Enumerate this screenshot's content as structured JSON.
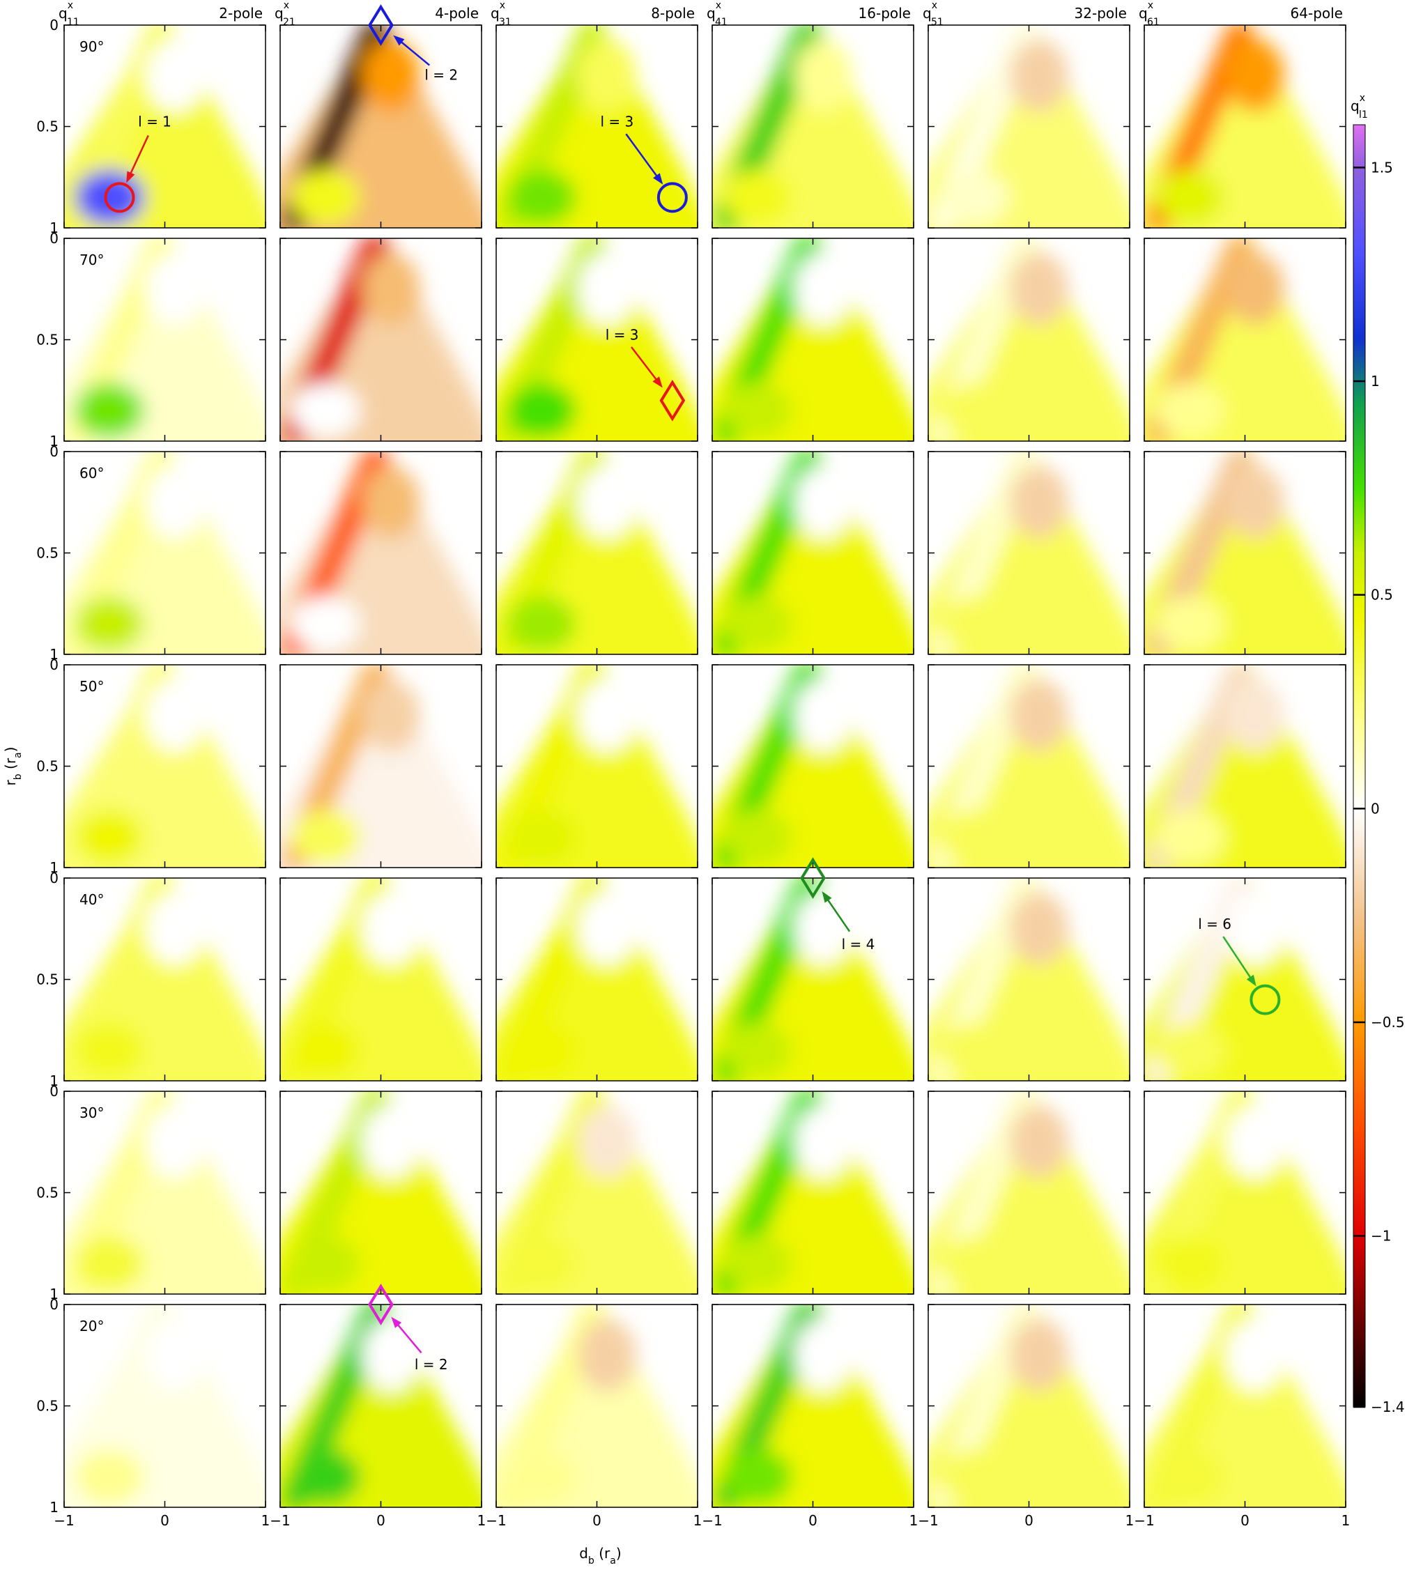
{
  "chart_data": {
    "type": "heatmap",
    "xlim": [
      -1,
      1
    ],
    "ylim": [
      1,
      0
    ],
    "xticks": [
      {
        "value": -1,
        "label": "−1"
      },
      0,
      1
    ],
    "yticks": [
      0,
      0.5,
      1
    ],
    "xlabel": [
      {
        "text": "d"
      },
      {
        "text": "b",
        "sub": true
      },
      {
        "text": " (r"
      },
      {
        "text": "a",
        "sub": true
      },
      {
        "text": ")"
      }
    ],
    "ylabel": [
      {
        "text": "r"
      },
      {
        "text": "b",
        "sub": true
      },
      {
        "text": " (r"
      },
      {
        "text": "a",
        "sub": true
      },
      {
        "text": ")"
      }
    ],
    "columns": [
      {
        "symbol": "q",
        "sup": "x",
        "sub": "11",
        "name": "2-pole"
      },
      {
        "symbol": "q",
        "sup": "x",
        "sub": "21",
        "name": "4-pole"
      },
      {
        "symbol": "q",
        "sup": "x",
        "sub": "31",
        "name": "8-pole"
      },
      {
        "symbol": "q",
        "sup": "x",
        "sub": "41",
        "name": "16-pole"
      },
      {
        "symbol": "q",
        "sup": "x",
        "sub": "51",
        "name": "32-pole"
      },
      {
        "symbol": "q",
        "sup": "x",
        "sub": "61",
        "name": "64-pole"
      }
    ],
    "rows": [
      "90°",
      "70°",
      "60°",
      "50°",
      "40°",
      "30°",
      "20°"
    ],
    "panels": [
      [
        {
          "region": 0.35,
          "edge": 0.3,
          "spot": 0,
          "corner": 1.3,
          "annotation": {
            "text": "l = 1",
            "marker": "circle",
            "color": "#e8161b",
            "x": -0.45,
            "y": 0.85,
            "text_x": -0.1,
            "text_y": 0.5
          }
        },
        {
          "region": -0.3,
          "edge": -1.3,
          "spot": -0.5,
          "corner": 0.4,
          "annotation": {
            "text": "l = 2",
            "marker": "diamond",
            "color": "#1a1adc",
            "x": 0,
            "y": 0,
            "text_x": 0.6,
            "text_y": 0.27
          }
        },
        {
          "region": 0.45,
          "edge": 0.6,
          "spot": 0.3,
          "corner": 0.7,
          "annotation": {
            "text": "l = 3",
            "marker": "circle",
            "color": "#1a1adc",
            "x": 0.75,
            "y": 0.85,
            "text_x": 0.2,
            "text_y": 0.5
          }
        },
        {
          "region": 0.3,
          "edge": 0.8,
          "spot": 0.2,
          "corner": 0.4
        },
        {
          "region": 0.25,
          "edge": 0.05,
          "spot": -0.2,
          "corner": 0.1
        },
        {
          "region": 0.3,
          "edge": -0.6,
          "spot": -0.5,
          "corner": 0.5
        }
      ],
      [
        {
          "region": 0.1,
          "edge": 0.2,
          "spot": 0,
          "corner": 0.7
        },
        {
          "region": -0.2,
          "edge": -1.0,
          "spot": -0.3,
          "corner": 0
        },
        {
          "region": 0.45,
          "edge": 0.6,
          "spot": 0,
          "corner": 0.75,
          "annotation": {
            "text": "l = 3",
            "marker": "diamond",
            "color": "#e8161b",
            "x": 0.75,
            "y": 0.8,
            "text_x": 0.25,
            "text_y": 0.5
          }
        },
        {
          "region": 0.45,
          "edge": 0.75,
          "spot": 0,
          "corner": 0.6
        },
        {
          "region": 0.3,
          "edge": 0.1,
          "spot": -0.2,
          "corner": 0.3
        },
        {
          "region": 0.3,
          "edge": -0.35,
          "spot": -0.3,
          "corner": 0.2
        }
      ],
      [
        {
          "region": 0.15,
          "edge": 0.2,
          "spot": 0,
          "corner": 0.6
        },
        {
          "region": -0.15,
          "edge": -0.7,
          "spot": -0.3,
          "corner": 0
        },
        {
          "region": 0.4,
          "edge": 0.5,
          "spot": 0,
          "corner": 0.65
        },
        {
          "region": 0.45,
          "edge": 0.75,
          "spot": 0,
          "corner": 0.6
        },
        {
          "region": 0.3,
          "edge": 0.1,
          "spot": -0.2,
          "corner": 0.3
        },
        {
          "region": 0.35,
          "edge": -0.25,
          "spot": -0.2,
          "corner": 0.2
        }
      ],
      [
        {
          "region": 0.25,
          "edge": 0.25,
          "spot": 0,
          "corner": 0.45
        },
        {
          "region": -0.05,
          "edge": -0.35,
          "spot": -0.2,
          "corner": 0.3
        },
        {
          "region": 0.4,
          "edge": 0.45,
          "spot": 0,
          "corner": 0.5
        },
        {
          "region": 0.45,
          "edge": 0.75,
          "spot": 0,
          "corner": 0.6
        },
        {
          "region": 0.3,
          "edge": 0.1,
          "spot": -0.2,
          "corner": 0.3
        },
        {
          "region": 0.4,
          "edge": -0.15,
          "spot": -0.1,
          "corner": 0.2
        }
      ],
      [
        {
          "region": 0.3,
          "edge": 0.3,
          "spot": 0,
          "corner": 0.4
        },
        {
          "region": 0.35,
          "edge": 0.4,
          "spot": 0,
          "corner": 0.45
        },
        {
          "region": 0.4,
          "edge": 0.45,
          "spot": 0,
          "corner": 0.45
        },
        {
          "region": 0.45,
          "edge": 0.75,
          "spot": 0,
          "corner": 0.6,
          "annotation": {
            "text": "l = 4",
            "marker": "diamond",
            "color": "#1e8c1e",
            "x": 0,
            "y": 0,
            "text_x": 0.45,
            "text_y": 0.35
          }
        },
        {
          "region": 0.3,
          "edge": 0.1,
          "spot": -0.2,
          "corner": 0.3
        },
        {
          "region": 0.4,
          "edge": -0.05,
          "spot": 0,
          "corner": 0.3,
          "annotation": {
            "text": "l = 6",
            "marker": "circle",
            "color": "#2ab02a",
            "x": 0.2,
            "y": 0.6,
            "text_x": -0.3,
            "text_y": 0.25
          }
        }
      ],
      [
        {
          "region": 0.15,
          "edge": 0.2,
          "spot": 0,
          "corner": 0.35
        },
        {
          "region": 0.45,
          "edge": 0.6,
          "spot": 0,
          "corner": 0.6
        },
        {
          "region": 0.3,
          "edge": 0.35,
          "spot": -0.1,
          "corner": 0.35
        },
        {
          "region": 0.45,
          "edge": 0.75,
          "spot": 0,
          "corner": 0.6
        },
        {
          "region": 0.3,
          "edge": 0.1,
          "spot": -0.2,
          "corner": 0.3
        },
        {
          "region": 0.35,
          "edge": 0.3,
          "spot": 0,
          "corner": 0.4
        }
      ],
      [
        {
          "region": 0.05,
          "edge": 0.05,
          "spot": 0,
          "corner": 0.2
        },
        {
          "region": 0.5,
          "edge": 0.8,
          "spot": 0,
          "corner": 0.8,
          "annotation": {
            "text": "l = 2",
            "marker": "diamond",
            "color": "#e020d8",
            "x": 0,
            "y": 0,
            "text_x": 0.5,
            "text_y": 0.32
          }
        },
        {
          "region": 0.15,
          "edge": 0.2,
          "spot": -0.2,
          "corner": 0.2
        },
        {
          "region": 0.45,
          "edge": 0.8,
          "spot": 0,
          "corner": 0.7
        },
        {
          "region": 0.3,
          "edge": 0.1,
          "spot": -0.2,
          "corner": 0.3
        },
        {
          "region": 0.3,
          "edge": 0.35,
          "spot": 0,
          "corner": 0.35
        }
      ]
    ],
    "clim": [
      -1.4,
      1.6
    ],
    "colorbar_label": {
      "symbol": "q",
      "sup": "x",
      "sub": "l1"
    },
    "colorbar_ticks": [
      1.5,
      1,
      0.5,
      0,
      {
        "value": -0.5,
        "label": "−0.5"
      },
      {
        "value": -1,
        "label": "−1"
      },
      {
        "value": -1.4,
        "label": "−1.4"
      }
    ],
    "colormap": [
      {
        "value": -1.4,
        "color": "#000000"
      },
      {
        "value": -1.2,
        "color": "#6a0000"
      },
      {
        "value": -1.0,
        "color": "#e00000"
      },
      {
        "value": -0.75,
        "color": "#ff4a00"
      },
      {
        "value": -0.5,
        "color": "#ff9a00"
      },
      {
        "value": -0.25,
        "color": "#f4c48f"
      },
      {
        "value": 0,
        "color": "#ffffff"
      },
      {
        "value": 0.2,
        "color": "#ffff90"
      },
      {
        "value": 0.45,
        "color": "#f0f700"
      },
      {
        "value": 0.6,
        "color": "#c8f000"
      },
      {
        "value": 0.75,
        "color": "#44e000"
      },
      {
        "value": 0.95,
        "color": "#10a050"
      },
      {
        "value": 1.1,
        "color": "#1030d0"
      },
      {
        "value": 1.3,
        "color": "#5050ff"
      },
      {
        "value": 1.5,
        "color": "#9060e0"
      },
      {
        "value": 1.6,
        "color": "#e070f0"
      }
    ]
  }
}
